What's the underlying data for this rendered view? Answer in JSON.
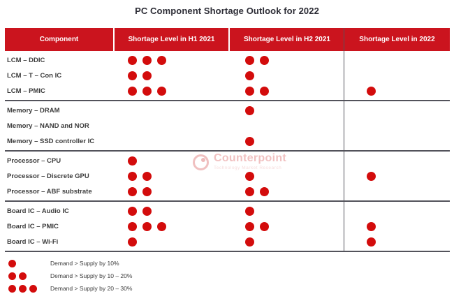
{
  "title": "PC Component Shortage Outlook for 2022",
  "chart_data": {
    "type": "table",
    "title": "PC Component Shortage Outlook for 2022",
    "columns": [
      "Component",
      "Shortage Level in H1 2021",
      "Shortage Level in H2 2021",
      "Shortage Level in 2022"
    ],
    "dot_unit": "shortage severity dots (1-3)",
    "groups": [
      {
        "rows": [
          {
            "component": "LCM – DDIC",
            "h1_2021": 3,
            "h2_2021": 2,
            "in_2022": 0
          },
          {
            "component": "LCM – T – Con IC",
            "h1_2021": 2,
            "h2_2021": 1,
            "in_2022": 0
          },
          {
            "component": "LCM – PMIC",
            "h1_2021": 3,
            "h2_2021": 2,
            "in_2022": 1
          }
        ]
      },
      {
        "rows": [
          {
            "component": "Memory – DRAM",
            "h1_2021": 0,
            "h2_2021": 1,
            "in_2022": 0
          },
          {
            "component": "Memory – NAND and NOR",
            "h1_2021": 0,
            "h2_2021": 0,
            "in_2022": 0
          },
          {
            "component": "Memory – SSD controller IC",
            "h1_2021": 0,
            "h2_2021": 1,
            "in_2022": 0
          }
        ]
      },
      {
        "rows": [
          {
            "component": "Processor – CPU",
            "h1_2021": 1,
            "h2_2021": 0,
            "in_2022": 0
          },
          {
            "component": "Processor – Discrete GPU",
            "h1_2021": 2,
            "h2_2021": 1,
            "in_2022": 1
          },
          {
            "component": "Processor – ABF substrate",
            "h1_2021": 2,
            "h2_2021": 2,
            "in_2022": 0
          }
        ]
      },
      {
        "rows": [
          {
            "component": "Board IC – Audio IC",
            "h1_2021": 2,
            "h2_2021": 1,
            "in_2022": 0
          },
          {
            "component": "Board IC – PMIC",
            "h1_2021": 3,
            "h2_2021": 2,
            "in_2022": 1
          },
          {
            "component": "Board IC – Wi-Fi",
            "h1_2021": 1,
            "h2_2021": 1,
            "in_2022": 1
          }
        ]
      }
    ],
    "legend": [
      {
        "dots": 1,
        "label": "Demand > Supply by 10%"
      },
      {
        "dots": 2,
        "label": "Demand > Supply by 10 – 20%"
      },
      {
        "dots": 3,
        "label": "Demand > Supply by 20 – 30%"
      }
    ]
  },
  "watermark": {
    "name": "Counterpoint",
    "tagline": "Technology Market Research"
  },
  "colors": {
    "header_bg": "#cb141e",
    "dot": "#d30c0c",
    "separator_line": "#53535b",
    "title_text": "#2d2d36",
    "label_text": "#3c3c3c",
    "watermark_pink": "#f1c1c1"
  }
}
